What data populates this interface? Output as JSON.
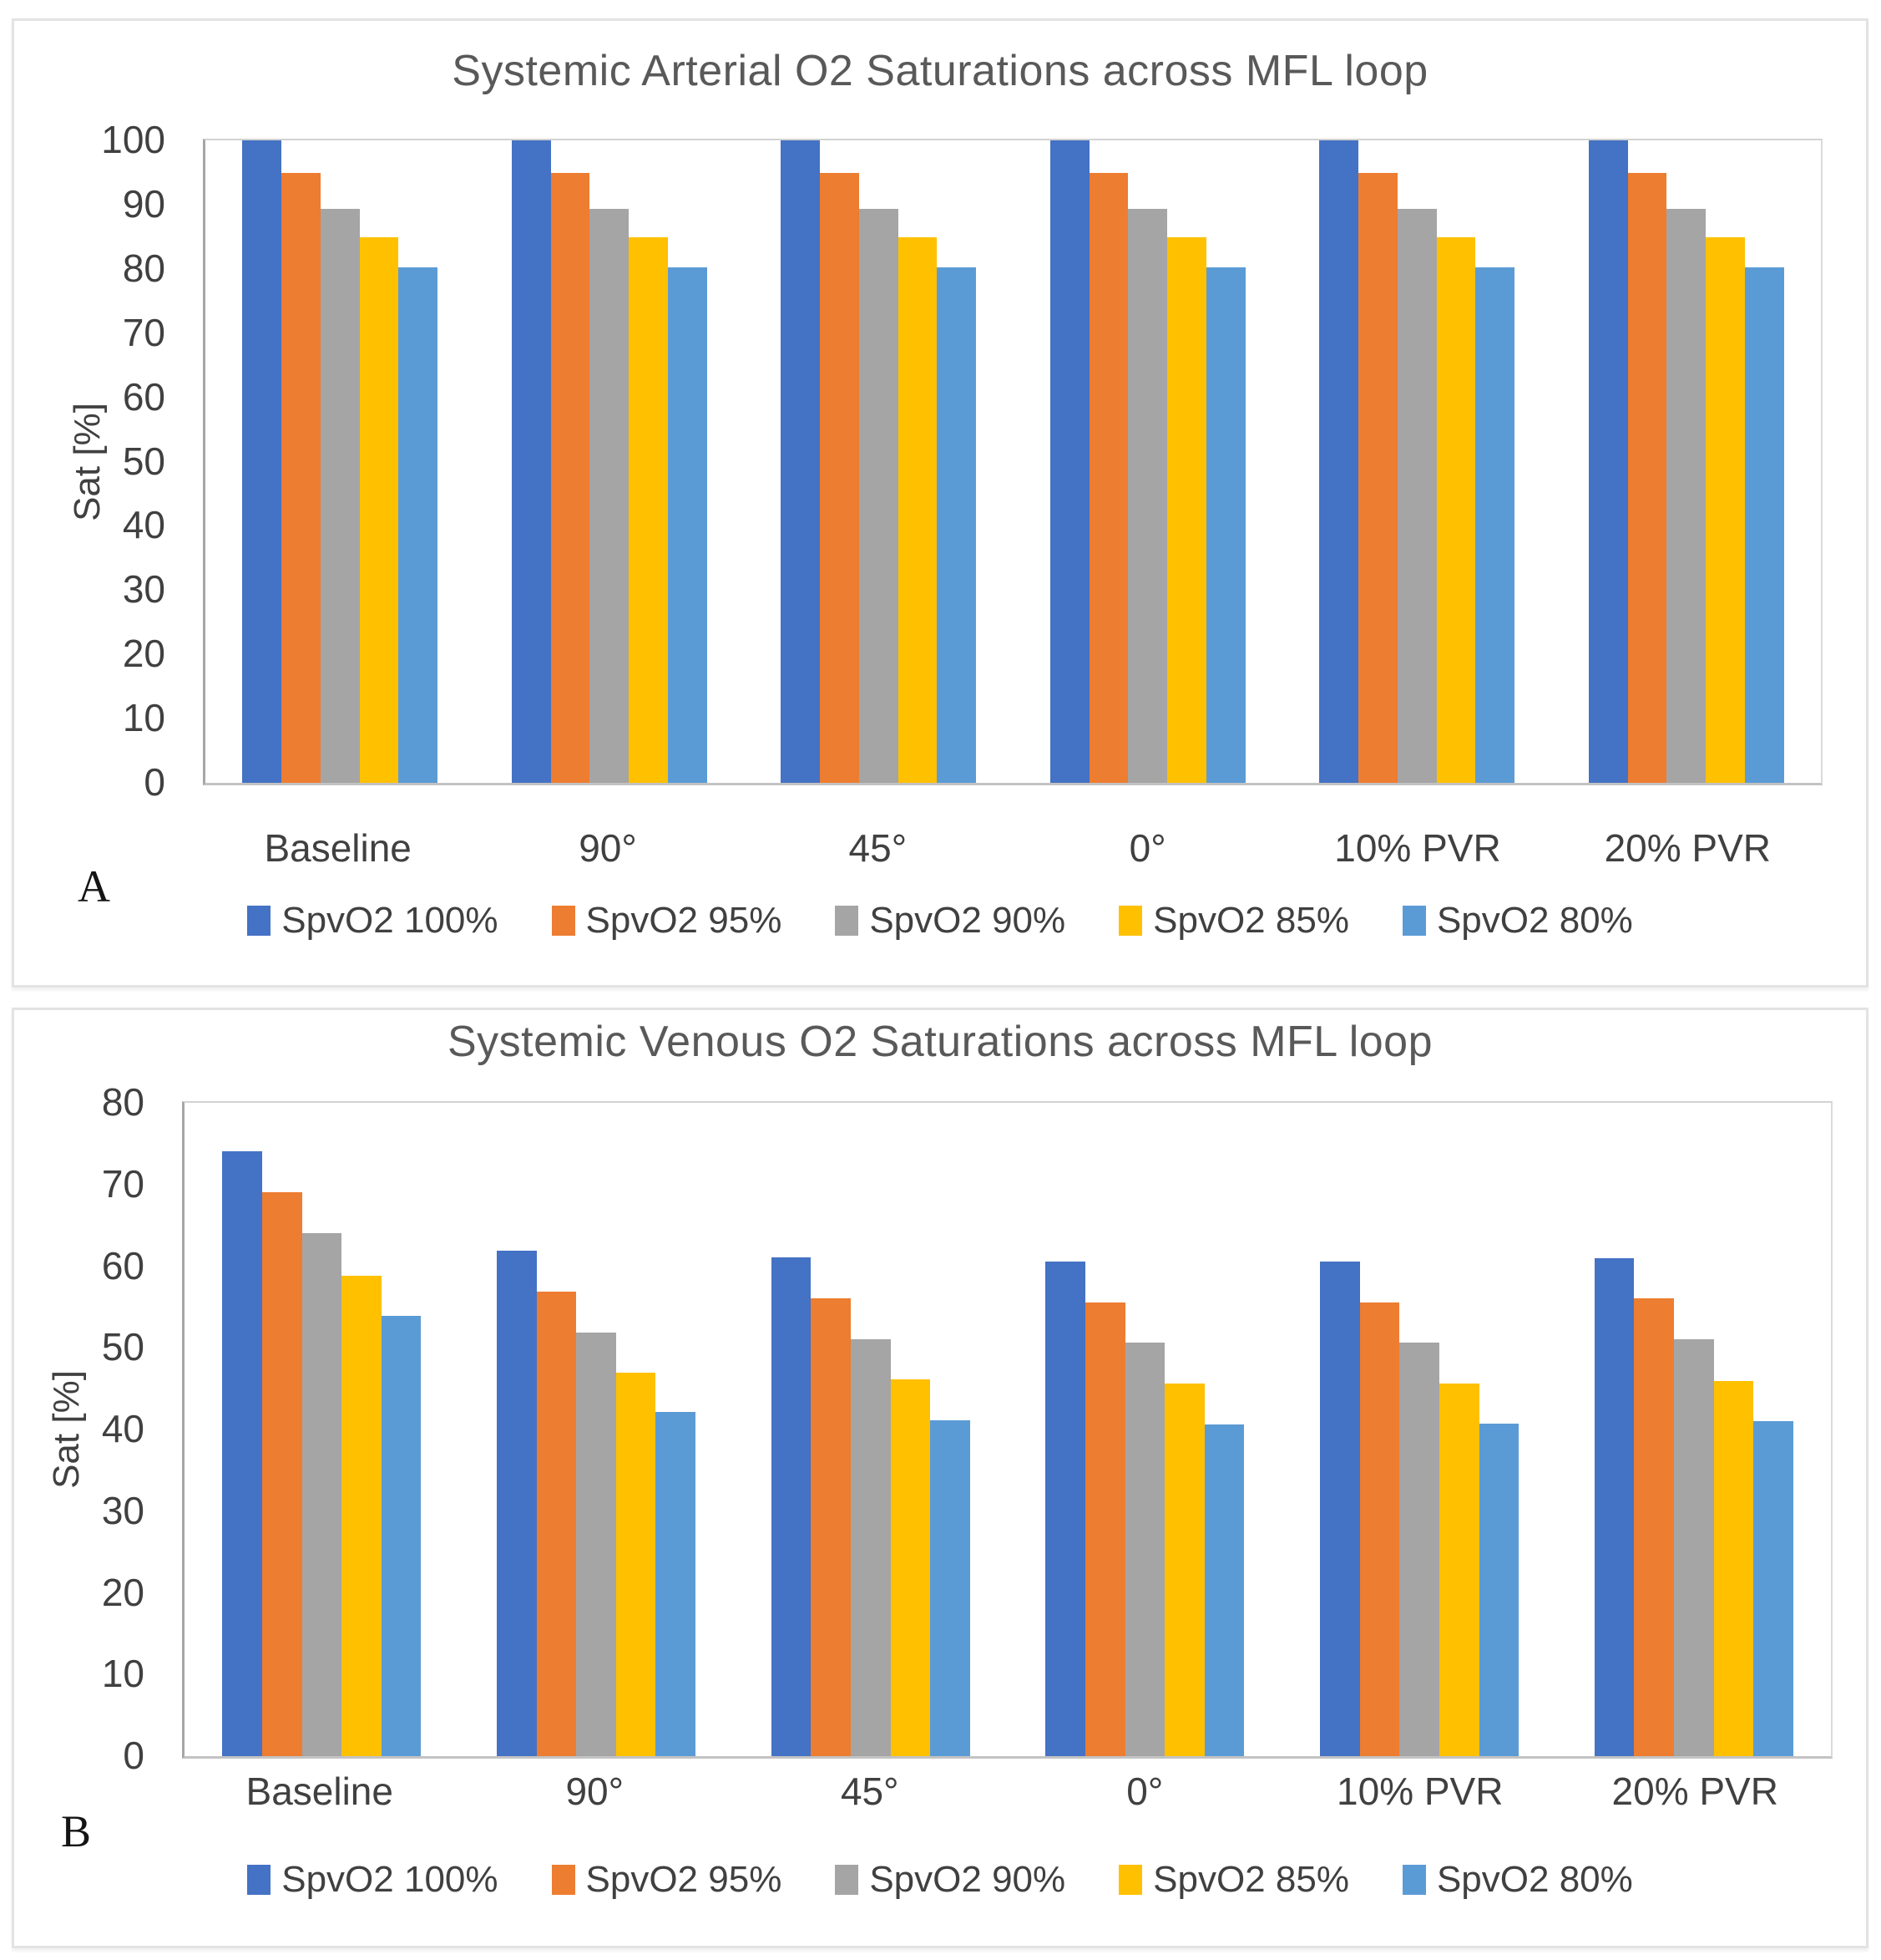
{
  "panels": [
    {
      "letter": "A"
    },
    {
      "letter": "B"
    }
  ],
  "colors": {
    "spvo2_100": "#4472C4",
    "spvo2_95": "#ED7D31",
    "spvo2_90": "#A5A5A5",
    "spvo2_85": "#FFC000",
    "spvo2_80": "#5B9BD5",
    "title_text": "#595959",
    "axis_text": "#404040",
    "plot_border": "#d2d2d2",
    "axis_line": "#a6a6a6"
  },
  "chart_data": [
    {
      "type": "bar",
      "title": "Systemic Arterial O2 Saturations across MFL loop",
      "xlabel": "",
      "ylabel": "Sat [%]",
      "ylim": [
        0,
        100
      ],
      "ytick_step": 10,
      "grid": false,
      "legend_position": "bottom",
      "categories": [
        "Baseline",
        "90°",
        "45°",
        "0°",
        "10% PVR",
        "20% PVR"
      ],
      "series": [
        {
          "name": "SpvO2 100%",
          "color": "#4472C4",
          "values": [
            100,
            100,
            100,
            100,
            100,
            100
          ]
        },
        {
          "name": "SpvO2 95%",
          "color": "#ED7D31",
          "values": [
            94.9,
            94.9,
            94.9,
            94.9,
            94.9,
            94.9
          ]
        },
        {
          "name": "SpvO2 90%",
          "color": "#A5A5A5",
          "values": [
            89.4,
            89.4,
            89.4,
            89.4,
            89.4,
            89.4
          ]
        },
        {
          "name": "SpvO2 85%",
          "color": "#FFC000",
          "values": [
            84.9,
            84.9,
            84.9,
            84.9,
            84.9,
            84.9
          ]
        },
        {
          "name": "SpvO2 80%",
          "color": "#5B9BD5",
          "values": [
            80.3,
            80.3,
            80.3,
            80.3,
            80.3,
            80.3
          ]
        }
      ]
    },
    {
      "type": "bar",
      "title": "Systemic Venous O2 Saturations across MFL loop",
      "xlabel": "",
      "ylabel": "Sat [%]",
      "ylim": [
        0,
        80
      ],
      "ytick_step": 10,
      "grid": false,
      "legend_position": "bottom",
      "categories": [
        "Baseline",
        "90°",
        "45°",
        "0°",
        "10% PVR",
        "20% PVR"
      ],
      "series": [
        {
          "name": "SpvO2 100%",
          "color": "#4472C4",
          "values": [
            74.1,
            61.9,
            61.1,
            60.6,
            60.6,
            61.0
          ]
        },
        {
          "name": "SpvO2 95%",
          "color": "#ED7D31",
          "values": [
            69.1,
            56.9,
            56.1,
            55.6,
            55.6,
            56.1
          ]
        },
        {
          "name": "SpvO2 90%",
          "color": "#A5A5A5",
          "values": [
            64.0,
            51.9,
            51.1,
            50.6,
            50.6,
            51.0
          ]
        },
        {
          "name": "SpvO2 85%",
          "color": "#FFC000",
          "values": [
            58.8,
            47.0,
            46.1,
            45.6,
            45.6,
            45.9
          ]
        },
        {
          "name": "SpvO2 80%",
          "color": "#5B9BD5",
          "values": [
            53.9,
            42.1,
            41.1,
            40.6,
            40.7,
            41.0
          ]
        }
      ]
    }
  ]
}
